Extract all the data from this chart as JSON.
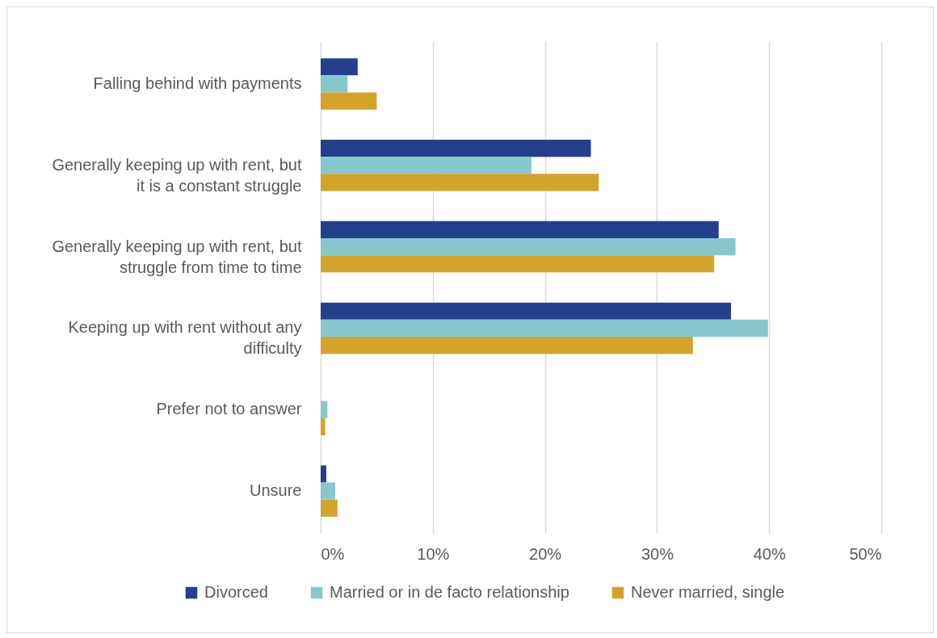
{
  "chart_data": {
    "type": "bar",
    "orientation": "horizontal",
    "categories": [
      "Falling behind with payments",
      "Generally keeping up with rent, but it is a constant struggle",
      "Generally keeping up with rent, but struggle from time to time",
      "Keeping up with rent without any difficulty",
      "Prefer not to answer",
      "Unsure"
    ],
    "series": [
      {
        "name": "Divorced",
        "color": "#243f8c",
        "values": [
          3.3,
          24.1,
          35.5,
          36.6,
          null,
          0.5
        ]
      },
      {
        "name": "Married or in de facto relationship",
        "color": "#87c8cf",
        "values": [
          2.4,
          18.8,
          37.0,
          39.9,
          0.6,
          1.3
        ]
      },
      {
        "name": "Never married, single",
        "color": "#d4a32a",
        "values": [
          5.0,
          24.8,
          35.1,
          33.2,
          0.4,
          1.5
        ]
      }
    ],
    "xlim": [
      0,
      50
    ],
    "xticks": [
      {
        "value": 0,
        "label": "0%"
      },
      {
        "value": 10,
        "label": "10%"
      },
      {
        "value": 20,
        "label": "20%"
      },
      {
        "value": 30,
        "label": "30%"
      },
      {
        "value": 40,
        "label": "40%"
      },
      {
        "value": 50,
        "label": "50%"
      }
    ],
    "grid": "x",
    "legend": "bottom"
  }
}
